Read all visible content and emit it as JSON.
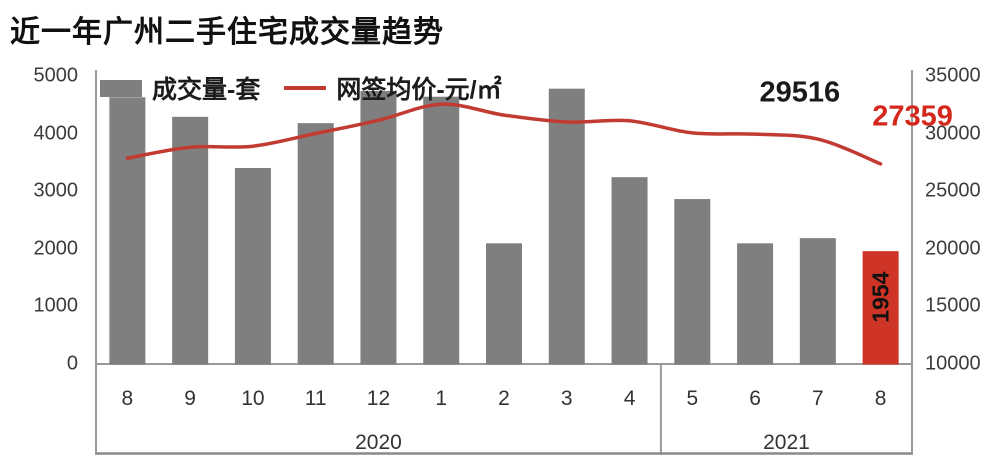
{
  "page": {
    "title": "近一年广州二手住宅成交量趋势"
  },
  "legend": {
    "bar_label": "成交量-套",
    "line_label": "网签均价-元/㎡"
  },
  "colors": {
    "bar": "#7f7f7f",
    "bar_highlight": "#ce3526",
    "line": "#c23b32",
    "annotation_dark": "#1a1a1a",
    "annotation_red": "#d5281c",
    "axis_line": "#9a9a9a",
    "axis_text": "#3c3c3c"
  },
  "chart_data": {
    "type": "combo-bar-line",
    "title": "近一年广州二手住宅成交量趋势",
    "categories": [
      "8",
      "9",
      "10",
      "11",
      "12",
      "1",
      "2",
      "3",
      "4",
      "5",
      "6",
      "7",
      "8"
    ],
    "year_groups": [
      {
        "label": "2020",
        "from_index": 0,
        "to_index": 8
      },
      {
        "label": "2021",
        "from_index": 9,
        "to_index": 12
      }
    ],
    "series": [
      {
        "name": "成交量-套",
        "type": "bar",
        "axis": "left",
        "values": [
          4630,
          4290,
          3400,
          4180,
          4740,
          4640,
          2090,
          4780,
          3240,
          2860,
          2090,
          2180,
          1954
        ],
        "highlight_index": 12,
        "data_labels": [
          {
            "index": 12,
            "text": "1954",
            "rotated": true
          }
        ]
      },
      {
        "name": "网签均价-元/㎡",
        "type": "line",
        "axis": "right",
        "values": [
          27850,
          28800,
          28900,
          30000,
          31150,
          32550,
          31600,
          31000,
          31100,
          30050,
          29950,
          29516,
          27359
        ]
      }
    ],
    "left_axis": {
      "min": 0,
      "max": 5000,
      "ticks": [
        5000,
        4000,
        3000,
        2000,
        1000,
        0
      ]
    },
    "right_axis": {
      "min": 10000,
      "max": 35000,
      "ticks": [
        35000,
        30000,
        25000,
        20000,
        15000,
        10000
      ]
    },
    "annotations": [
      {
        "text": "29516",
        "color": "#1a1a1a",
        "category_index": 11
      },
      {
        "text": "27359",
        "color": "#d5281c",
        "category_index": 12
      }
    ],
    "grid": false,
    "legend_position": "top-left"
  }
}
